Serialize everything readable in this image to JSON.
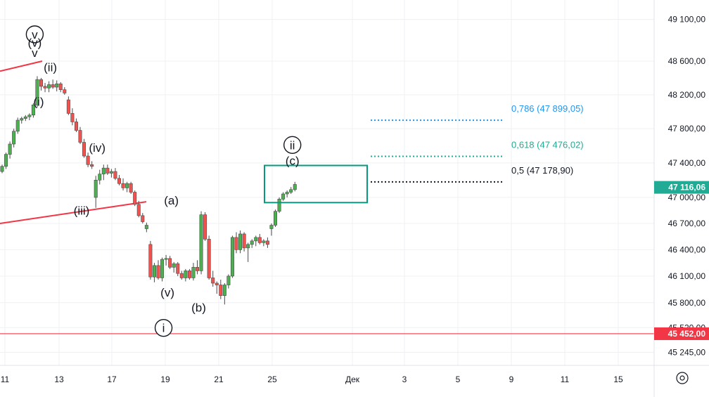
{
  "colors": {
    "up": "#4caf50",
    "down": "#ef5350",
    "wick": "#4a4a4a",
    "grid": "#eef0f3",
    "trendline": "#f23645",
    "support": "#f23645",
    "box": "#089981",
    "fib_0786": "#2196f3",
    "fib_0618": "#22ab94",
    "fib_05": "#131722",
    "price_tag": "#22ab94",
    "support_tag": "#f23645",
    "axis_text": "#131722"
  },
  "chart_data": {
    "type": "candlestick",
    "x_ticks": [
      "11",
      "13",
      "17",
      "19",
      "21",
      "25",
      "Дек",
      "3",
      "5",
      "9",
      "11",
      "15"
    ],
    "y_ticks": [
      "49 100,00",
      "48 600,00",
      "48 200,00",
      "47 800,00",
      "47 400,00",
      "47 000,00",
      "46 700,00",
      "46 400,00",
      "46 100,00",
      "45 800,00",
      "45 520,00",
      "45 245,00"
    ],
    "y_range": [
      45100,
      49250
    ],
    "y_scale": "log",
    "candles": [
      [
        47300,
        47380,
        47280,
        47360
      ],
      [
        47360,
        47520,
        47330,
        47500
      ],
      [
        47500,
        47650,
        47450,
        47620
      ],
      [
        47620,
        47800,
        47580,
        47770
      ],
      [
        47770,
        47930,
        47740,
        47900
      ],
      [
        47900,
        47940,
        47860,
        47920
      ],
      [
        47920,
        47960,
        47890,
        47940
      ],
      [
        47940,
        47980,
        47900,
        47960
      ],
      [
        47960,
        48100,
        47930,
        48080
      ],
      [
        48080,
        48420,
        48050,
        48380
      ],
      [
        48380,
        48400,
        48250,
        48300
      ],
      [
        48300,
        48340,
        48230,
        48280
      ],
      [
        48280,
        48360,
        48230,
        48320
      ],
      [
        48320,
        48380,
        48270,
        48290
      ],
      [
        48290,
        48370,
        48240,
        48330
      ],
      [
        48330,
        48350,
        48230,
        48260
      ],
      [
        48260,
        48290,
        48200,
        48220
      ],
      [
        48140,
        48180,
        47960,
        47980
      ],
      [
        47980,
        48040,
        47840,
        47880
      ],
      [
        47880,
        47920,
        47760,
        47780
      ],
      [
        47780,
        47820,
        47620,
        47640
      ],
      [
        47640,
        47680,
        47460,
        47480
      ],
      [
        47480,
        47520,
        47350,
        47380
      ],
      [
        47380,
        47420,
        47330,
        47360
      ],
      [
        47000,
        47250,
        46880,
        47200
      ],
      [
        47200,
        47320,
        47150,
        47270
      ],
      [
        47270,
        47380,
        47200,
        47340
      ],
      [
        47340,
        47380,
        47260,
        47280
      ],
      [
        47280,
        47330,
        47230,
        47300
      ],
      [
        47300,
        47340,
        47200,
        47220
      ],
      [
        47220,
        47260,
        47140,
        47160
      ],
      [
        47160,
        47220,
        47080,
        47110
      ],
      [
        47110,
        47180,
        47060,
        47160
      ],
      [
        47160,
        47180,
        47040,
        47060
      ],
      [
        47060,
        47080,
        46900,
        46920
      ],
      [
        46920,
        46960,
        46770,
        46790
      ],
      [
        46790,
        46820,
        46700,
        46720
      ],
      [
        46640,
        46710,
        46600,
        46680
      ],
      [
        46460,
        46500,
        46060,
        46090
      ],
      [
        46090,
        46250,
        46030,
        46220
      ],
      [
        46220,
        46280,
        46060,
        46080
      ],
      [
        46080,
        46310,
        46040,
        46290
      ],
      [
        46290,
        46340,
        46220,
        46300
      ],
      [
        46300,
        46330,
        46180,
        46200
      ],
      [
        46200,
        46260,
        46140,
        46240
      ],
      [
        46240,
        46260,
        46100,
        46130
      ],
      [
        46130,
        46160,
        46060,
        46080
      ],
      [
        46080,
        46180,
        46040,
        46160
      ],
      [
        46160,
        46180,
        46060,
        46080
      ],
      [
        46080,
        46250,
        46050,
        46200
      ],
      [
        46200,
        46280,
        46120,
        46160
      ],
      [
        46160,
        46840,
        46120,
        46800
      ],
      [
        46800,
        46830,
        46500,
        46520
      ],
      [
        46520,
        46560,
        46060,
        46080
      ],
      [
        46080,
        46160,
        45980,
        46020
      ],
      [
        46020,
        46040,
        45900,
        46000
      ],
      [
        46000,
        46060,
        45840,
        45880
      ],
      [
        45880,
        46020,
        45780,
        46000
      ],
      [
        46000,
        46120,
        45960,
        46100
      ],
      [
        46100,
        46560,
        46080,
        46540
      ],
      [
        46540,
        46600,
        46360,
        46400
      ],
      [
        46400,
        46620,
        46360,
        46580
      ],
      [
        46580,
        46600,
        46380,
        46420
      ],
      [
        46420,
        46480,
        46260,
        46460
      ],
      [
        46460,
        46520,
        46420,
        46500
      ],
      [
        46500,
        46560,
        46440,
        46540
      ],
      [
        46540,
        46580,
        46460,
        46480
      ],
      [
        46480,
        46520,
        46440,
        46500
      ],
      [
        46500,
        46540,
        46420,
        46460
      ],
      [
        46640,
        46700,
        46560,
        46680
      ],
      [
        46680,
        46860,
        46660,
        46840
      ],
      [
        46840,
        47000,
        46820,
        46980
      ],
      [
        46980,
        47060,
        46960,
        47040
      ],
      [
        47040,
        47080,
        47000,
        47060
      ],
      [
        47060,
        47120,
        47040,
        47090
      ],
      [
        47090,
        47180,
        47070,
        47150
      ]
    ],
    "current_price": "47 116,06",
    "support_level": 45452,
    "support_label": "45 452,00",
    "fib_levels": [
      {
        "ratio": 0.786,
        "price": 47899.05,
        "label": "0,786 (47 899,05)"
      },
      {
        "ratio": 0.618,
        "price": 47476.02,
        "label": "0,618 (47 476,02)"
      },
      {
        "ratio": 0.5,
        "price": 47178.9,
        "label": "0,5 (47 178,90)"
      }
    ],
    "target_box": {
      "from": 46940,
      "to": 47370
    },
    "wave_labels": [
      {
        "text": "v",
        "circled": true,
        "bar": 8,
        "price": 48870
      },
      {
        "text": "(v)",
        "circled": false,
        "bar": 8,
        "price": 48770
      },
      {
        "text": "v",
        "circled": false,
        "bar": 8,
        "price": 48650
      },
      {
        "text": "(ii)",
        "circled": false,
        "bar": 12,
        "price": 48480
      },
      {
        "text": "(i)",
        "circled": false,
        "bar": 9,
        "price": 48070
      },
      {
        "text": "(iv)",
        "circled": false,
        "bar": 24,
        "price": 47530
      },
      {
        "text": "(iii)",
        "circled": false,
        "bar": 20,
        "price": 46800
      },
      {
        "text": "(a)",
        "circled": false,
        "bar": 43,
        "price": 46920
      },
      {
        "text": "(v)",
        "circled": false,
        "bar": 42,
        "price": 45870
      },
      {
        "text": "(b)",
        "circled": false,
        "bar": 50,
        "price": 45700
      },
      {
        "text": "i",
        "circled": true,
        "bar": 41,
        "price": 45470
      },
      {
        "text": "ii",
        "circled": true,
        "bar": 74,
        "price": 47560
      },
      {
        "text": "(c)",
        "circled": false,
        "bar": 74,
        "price": 47380
      }
    ],
    "trendlines": [
      {
        "from_price": 48480,
        "to_price": 48600,
        "upper": true
      },
      {
        "from_price": 46700,
        "to_price": 46950,
        "upper": false
      }
    ]
  },
  "ui": {
    "settings_icon": "gear-icon"
  }
}
